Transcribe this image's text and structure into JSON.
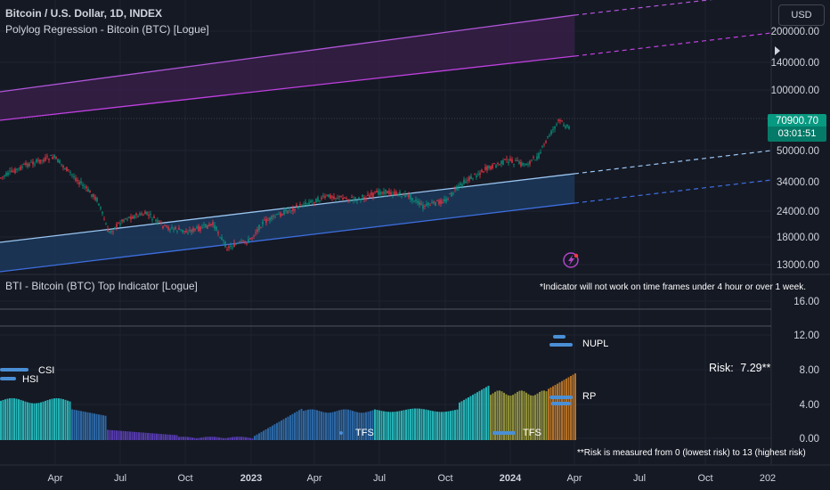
{
  "main": {
    "title": "Bitcoin / U.S. Dollar, 1D, INDEX",
    "indicator_title": "Polylog Regression - Bitcoin (BTC) [Logue]",
    "currency": "USD",
    "price": "70900.70",
    "countdown": "03:01:51",
    "price_axis": [
      "200000.00",
      "140000.00",
      "100000.00",
      "50000.00",
      "34000.00",
      "24000.00",
      "18000.00",
      "13000.00"
    ]
  },
  "lower": {
    "title": "BTI - Bitcoin (BTC) Top Indicator [Logue]",
    "note": "*Indicator will not work on time frames under 4 hour or over 1 week.",
    "risk_label": "Risk:",
    "risk_value": "7.29**",
    "footnote": "**Risk is measured from 0 (lowest risk) to 13 (highest risk)",
    "labels": {
      "csi": "CSI",
      "hsi": "HSI",
      "nupl": "NUPL",
      "rp": "RP",
      "tfs1": "TFS",
      "tfs2": "TFS"
    },
    "axis": [
      "16.00",
      "12.00",
      "8.00",
      "4.00",
      "0.00"
    ]
  },
  "time_axis": [
    "Apr",
    "Jul",
    "Oct",
    "2023",
    "Apr",
    "Jul",
    "Oct",
    "2024",
    "Apr",
    "Jul",
    "Oct",
    "202"
  ],
  "colors": {
    "background": "#151924",
    "up": "#089981",
    "down": "#f23645",
    "upper_band": "#b055d8",
    "upper_band_lower": "#c040e0",
    "mid_line": "#9bc6f2",
    "low_line": "#3d6fe0",
    "mid_fill": "#1c3a5e",
    "bars_cyan": "#27c2c4",
    "bars_blue": "#2f6fb0",
    "bars_purple": "#5a3db8",
    "bars_olive": "#9a9a3e",
    "bars_orange": "#c27a2a"
  }
}
